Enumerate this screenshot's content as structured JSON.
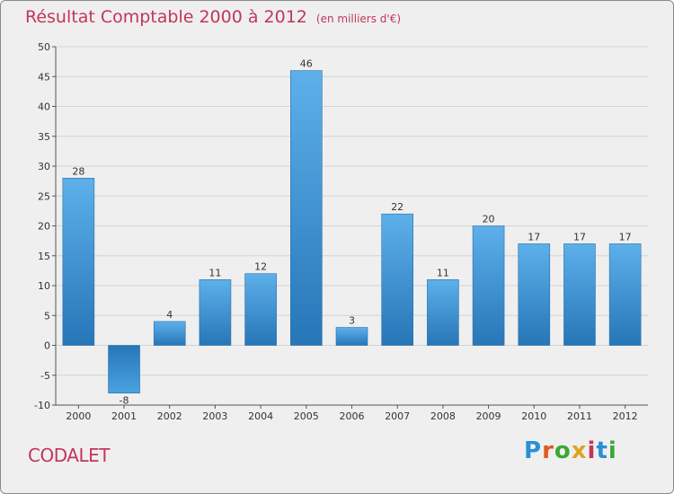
{
  "header": {
    "title": "Résultat Comptable 2000 à 2012",
    "subtitle": "(en milliers d'€)"
  },
  "footer": {
    "commune": "CODALET",
    "brand_letters": [
      "P",
      "r",
      "o",
      "x",
      "i",
      "t",
      "i"
    ],
    "brand_colors": [
      "#2a8fd6",
      "#e05a1e",
      "#39a935",
      "#e0a21e",
      "#c2365a",
      "#2a8fd6",
      "#39a935"
    ]
  },
  "chart_data": {
    "type": "bar",
    "title": "Résultat Comptable 2000 à 2012",
    "subtitle": "(en milliers d'€)",
    "categories": [
      "2000",
      "2001",
      "2002",
      "2003",
      "2004",
      "2005",
      "2006",
      "2007",
      "2008",
      "2009",
      "2010",
      "2011",
      "2012"
    ],
    "values": [
      28,
      -8,
      4,
      11,
      12,
      46,
      3,
      22,
      11,
      20,
      17,
      17,
      17
    ],
    "ylim": [
      -10,
      50
    ],
    "yticks": [
      -10,
      -5,
      0,
      5,
      10,
      15,
      20,
      25,
      30,
      35,
      40,
      45,
      50
    ],
    "xlabel": "",
    "ylabel": "",
    "grid": true,
    "bar_color": "#3b92d8",
    "grid_color": "#d4d4d4"
  }
}
